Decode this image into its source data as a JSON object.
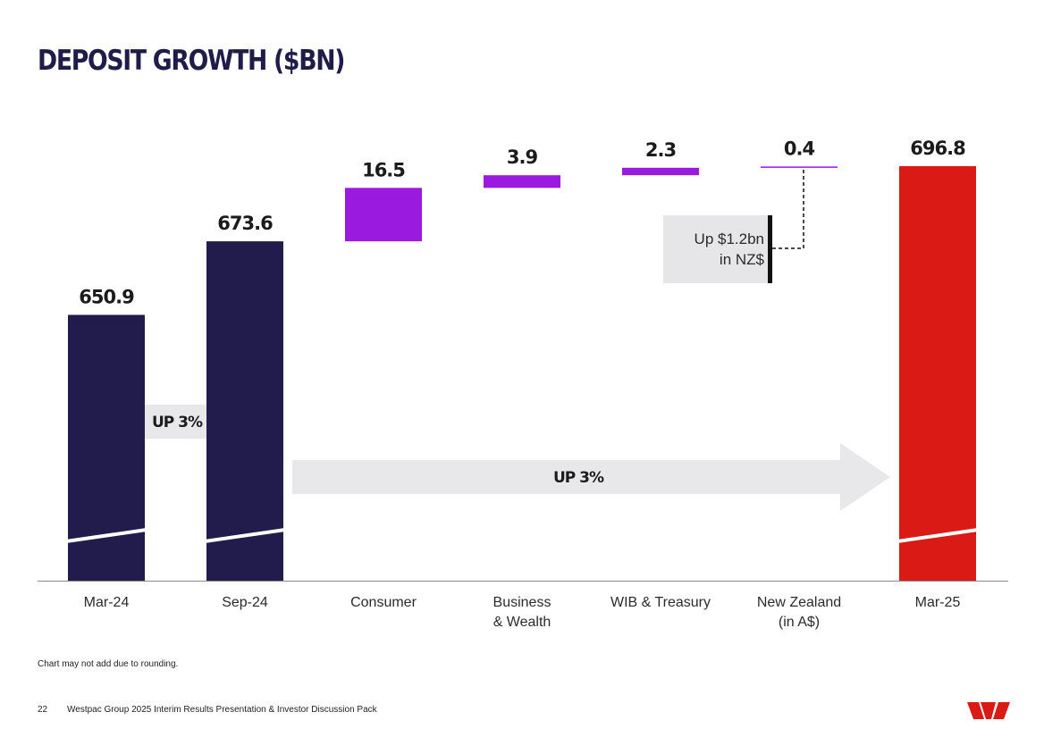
{
  "slide": {
    "title": "DEPOSIT GROWTH ($BN)",
    "footnote": "Chart may not add due to rounding.",
    "page_number": "22",
    "footer_text": "Westpac Group 2025 Interim Results Presentation & Investor Discussion Pack",
    "logo_name": "westpac-w-logo"
  },
  "colors": {
    "navy": "#211c4b",
    "purple": "#9a1adf",
    "red": "#da1a14",
    "arrow_grey": "#e8e8ea",
    "callout_grey": "#e6e6e8",
    "logo_red": "#da1a14"
  },
  "chart_data": {
    "type": "bar",
    "subtype": "waterfall",
    "title": "DEPOSIT GROWTH ($BN)",
    "ylabel": "",
    "xlabel": "",
    "ylim": [
      600,
      700
    ],
    "axis_break": true,
    "categories": [
      [
        "Mar-24"
      ],
      [
        "Sep-24"
      ],
      [
        "Consumer"
      ],
      [
        "Business",
        "& Wealth"
      ],
      [
        "WIB & Treasury"
      ],
      [
        "New Zealand",
        "(in A$)"
      ],
      [
        "Mar-25"
      ]
    ],
    "bars": [
      {
        "kind": "total",
        "label": "Mar-24",
        "value": 650.9,
        "display": "650.9",
        "color": "navy"
      },
      {
        "kind": "total",
        "label": "Sep-24",
        "value": 673.6,
        "display": "673.6",
        "color": "navy"
      },
      {
        "kind": "delta",
        "label": "Consumer",
        "value": 16.5,
        "display": "16.5",
        "color": "purple"
      },
      {
        "kind": "delta",
        "label": "Business & Wealth",
        "value": 3.9,
        "display": "3.9",
        "color": "purple"
      },
      {
        "kind": "delta",
        "label": "WIB & Treasury",
        "value": 2.3,
        "display": "2.3",
        "color": "purple"
      },
      {
        "kind": "delta",
        "label": "New Zealand (in A$)",
        "value": 0.4,
        "display": "0.4",
        "color": "purple"
      },
      {
        "kind": "total",
        "label": "Mar-25",
        "value": 696.8,
        "display": "696.8",
        "color": "red"
      }
    ],
    "annotations": {
      "arrows": [
        {
          "label": "UP 3%",
          "from": "Mar-24",
          "to": "Sep-24"
        },
        {
          "label": "UP 3%",
          "from": "Sep-24",
          "to": "Mar-25"
        }
      ],
      "callout": {
        "lines": [
          "Up $1.2bn",
          "in NZ$"
        ],
        "attached_to": "New Zealand (in A$)"
      }
    }
  }
}
